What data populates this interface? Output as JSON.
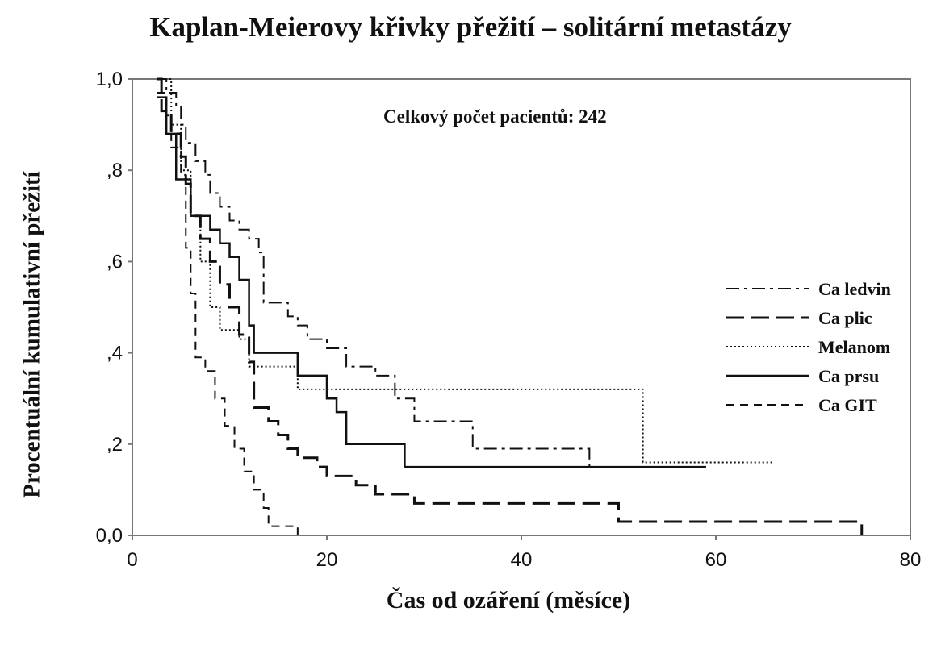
{
  "chart_data": {
    "type": "line",
    "title": "Kaplan-Meierovy křivky přežití – solitární metastázy",
    "xlabel": "Čas od ozáření (měsíce)",
    "ylabel": "Procentuální kumulativní přežití",
    "xlim": [
      0,
      80
    ],
    "ylim": [
      0,
      1
    ],
    "x_ticks": [
      "0",
      "20",
      "40",
      "60",
      "80"
    ],
    "x_tick_values": [
      0,
      20,
      40,
      60,
      80
    ],
    "y_ticks": [
      "0,0",
      ",2",
      ",4",
      ",6",
      ",8",
      "1,0"
    ],
    "y_tick_values": [
      0,
      0.2,
      0.4,
      0.6,
      0.8,
      1.0
    ],
    "annotation": "Celkový počet pacientů: 242",
    "legend_position": "right",
    "series": [
      {
        "name": "Ca ledvin",
        "dash": "dashdot",
        "steps": [
          [
            2.5,
            1.0
          ],
          [
            3.5,
            0.97
          ],
          [
            4.5,
            0.94
          ],
          [
            5,
            0.9
          ],
          [
            5.5,
            0.86
          ],
          [
            6.5,
            0.82
          ],
          [
            7.5,
            0.79
          ],
          [
            8,
            0.75
          ],
          [
            9,
            0.72
          ],
          [
            10,
            0.69
          ],
          [
            11,
            0.67
          ],
          [
            12,
            0.65
          ],
          [
            13,
            0.62
          ],
          [
            13.5,
            0.51
          ],
          [
            16,
            0.48
          ],
          [
            17,
            0.46
          ],
          [
            18,
            0.43
          ],
          [
            20,
            0.41
          ],
          [
            22,
            0.37
          ],
          [
            25,
            0.35
          ],
          [
            27,
            0.3
          ],
          [
            29,
            0.25
          ],
          [
            35,
            0.19
          ],
          [
            47,
            0.15
          ],
          [
            58,
            0.15
          ]
        ]
      },
      {
        "name": "Ca plic",
        "dash": "longdash",
        "steps": [
          [
            2.5,
            1.0
          ],
          [
            3,
            0.93
          ],
          [
            4,
            0.88
          ],
          [
            5,
            0.83
          ],
          [
            5.5,
            0.77
          ],
          [
            6,
            0.7
          ],
          [
            7,
            0.65
          ],
          [
            8,
            0.6
          ],
          [
            9,
            0.55
          ],
          [
            10,
            0.5
          ],
          [
            11,
            0.44
          ],
          [
            12,
            0.38
          ],
          [
            12.5,
            0.28
          ],
          [
            14,
            0.25
          ],
          [
            15,
            0.22
          ],
          [
            16,
            0.19
          ],
          [
            17,
            0.17
          ],
          [
            19,
            0.15
          ],
          [
            20,
            0.13
          ],
          [
            23,
            0.11
          ],
          [
            25,
            0.09
          ],
          [
            29,
            0.07
          ],
          [
            40,
            0.07
          ],
          [
            50,
            0.03
          ],
          [
            60,
            0.03
          ],
          [
            75,
            0.03
          ],
          [
            75,
            0.0
          ]
        ]
      },
      {
        "name": "Melanom",
        "dash": "dotted",
        "steps": [
          [
            3,
            1.0
          ],
          [
            4,
            0.9
          ],
          [
            5,
            0.8
          ],
          [
            6,
            0.7
          ],
          [
            7,
            0.6
          ],
          [
            8,
            0.5
          ],
          [
            9,
            0.45
          ],
          [
            11,
            0.43
          ],
          [
            12,
            0.37
          ],
          [
            17,
            0.32
          ],
          [
            52,
            0.32
          ],
          [
            52.5,
            0.16
          ],
          [
            66,
            0.16
          ]
        ]
      },
      {
        "name": "Ca prsu",
        "dash": "solid",
        "steps": [
          [
            2.5,
            0.96
          ],
          [
            3.5,
            0.88
          ],
          [
            4.5,
            0.78
          ],
          [
            6,
            0.7
          ],
          [
            8,
            0.67
          ],
          [
            9,
            0.64
          ],
          [
            10,
            0.61
          ],
          [
            11,
            0.56
          ],
          [
            12,
            0.46
          ],
          [
            12.5,
            0.4
          ],
          [
            16,
            0.4
          ],
          [
            17,
            0.35
          ],
          [
            20,
            0.3
          ],
          [
            21,
            0.27
          ],
          [
            22,
            0.2
          ],
          [
            28,
            0.15
          ],
          [
            50,
            0.15
          ],
          [
            59,
            0.15
          ]
        ]
      },
      {
        "name": "Ca GIT",
        "dash": "dashed",
        "steps": [
          [
            2.5,
            0.97
          ],
          [
            3.5,
            0.92
          ],
          [
            4,
            0.85
          ],
          [
            5,
            0.79
          ],
          [
            5.5,
            0.63
          ],
          [
            6,
            0.53
          ],
          [
            6.5,
            0.39
          ],
          [
            7.5,
            0.36
          ],
          [
            8.5,
            0.3
          ],
          [
            9.5,
            0.24
          ],
          [
            10.5,
            0.19
          ],
          [
            11.5,
            0.14
          ],
          [
            12.5,
            0.1
          ],
          [
            13.5,
            0.06
          ],
          [
            14,
            0.02
          ],
          [
            17,
            0.0
          ]
        ]
      }
    ]
  }
}
